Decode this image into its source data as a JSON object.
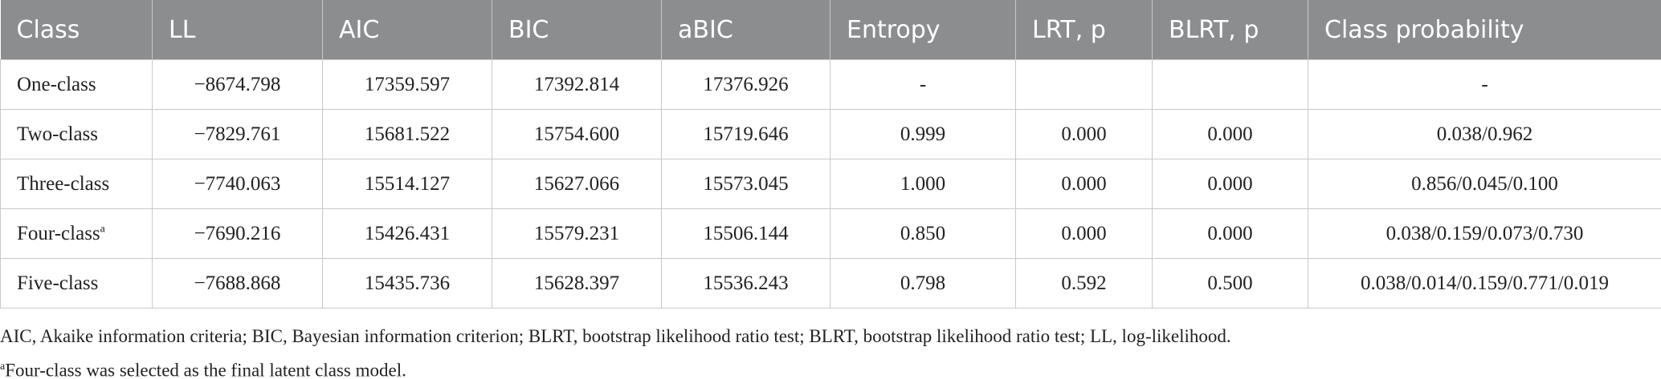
{
  "table": {
    "header": [
      "Class",
      "LL",
      "AIC",
      "BIC",
      "aBIC",
      "Entropy",
      "LRT, p",
      "BLRT, p",
      "Class probability"
    ],
    "rows": [
      [
        "One-class",
        "−8674.798",
        "17359.597",
        "17392.814",
        "17376.926",
        "-",
        null,
        null,
        "-"
      ],
      [
        "Two-class",
        "−7829.761",
        "15681.522",
        "15754.600",
        "15719.646",
        "0.999",
        "0.000",
        "0.000",
        "0.038/0.962"
      ],
      [
        "Three-class",
        "−7740.063",
        "15514.127",
        "15627.066",
        "15573.045",
        "1.000",
        "0.000",
        "0.000",
        "0.856/0.045/0.100"
      ],
      [
        "Four-class",
        "−7690.216",
        "15426.431",
        "15579.231",
        "15506.144",
        "0.850",
        "0.000",
        "0.000",
        "0.038/0.159/0.073/0.730"
      ],
      [
        "Five-class",
        "−7688.868",
        "15435.736",
        "15628.397",
        "15536.243",
        "0.798",
        "0.592",
        "0.500",
        "0.038/0.014/0.159/0.771/0.019"
      ]
    ]
  },
  "footnotes": [
    {
      "text": "AIC, Akaike information criteria; BIC, Bayesian information criterion; BLRT, bootstrap likelihood ratio test; BLRT, bootstrap likelihood ratio test; LL, log-likelihood."
    },
    {
      "marker": "a",
      "text": "Four-class was selected as the final latent class model."
    }
  ]
}
